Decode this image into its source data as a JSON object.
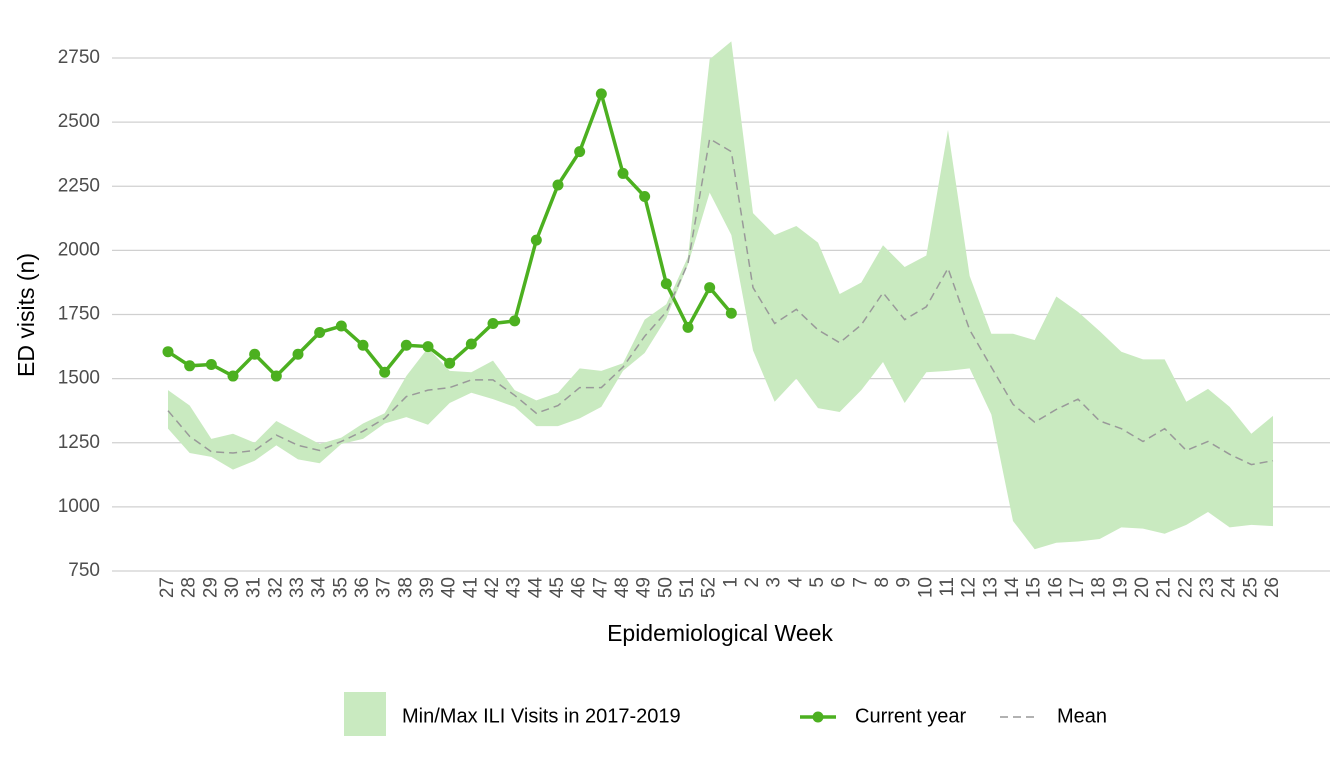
{
  "chart_data": {
    "type": "line",
    "x_label": "Epidemiological Week",
    "y_label": "ED visits (n)",
    "categories": [
      "27",
      "28",
      "29",
      "30",
      "31",
      "32",
      "33",
      "34",
      "35",
      "36",
      "37",
      "38",
      "39",
      "40",
      "41",
      "42",
      "43",
      "44",
      "45",
      "46",
      "47",
      "48",
      "49",
      "50",
      "51",
      "52",
      "1",
      "2",
      "3",
      "4",
      "5",
      "6",
      "7",
      "8",
      "9",
      "10",
      "11",
      "12",
      "13",
      "14",
      "15",
      "16",
      "17",
      "18",
      "19",
      "20",
      "21",
      "22",
      "23",
      "24",
      "25",
      "26"
    ],
    "ylim": [
      750,
      2850
    ],
    "yticks": [
      750,
      1000,
      1250,
      1500,
      1750,
      2000,
      2250,
      2500,
      2750
    ],
    "grid": true,
    "legend": "bottom",
    "series": [
      {
        "name": "Min/Max ILI Visits in 2017-2019",
        "kind": "band",
        "color": "#c9eac0",
        "lower": [
          1305,
          1210,
          1195,
          1145,
          1180,
          1240,
          1185,
          1170,
          1245,
          1265,
          1325,
          1350,
          1320,
          1405,
          1445,
          1420,
          1390,
          1315,
          1315,
          1345,
          1390,
          1530,
          1600,
          1735,
          1945,
          2225,
          2060,
          1610,
          1410,
          1500,
          1385,
          1370,
          1455,
          1565,
          1405,
          1525,
          1530,
          1540,
          1360,
          945,
          835,
          860,
          865,
          875,
          920,
          915,
          895,
          930,
          980,
          920,
          930,
          925
        ],
        "upper": [
          1455,
          1395,
          1265,
          1285,
          1250,
          1335,
          1290,
          1245,
          1270,
          1325,
          1365,
          1510,
          1620,
          1530,
          1525,
          1570,
          1455,
          1415,
          1445,
          1540,
          1530,
          1560,
          1730,
          1790,
          1975,
          2745,
          2815,
          2145,
          2060,
          2095,
          2030,
          1830,
          1875,
          2020,
          1935,
          1980,
          2470,
          1900,
          1675,
          1675,
          1650,
          1820,
          1760,
          1685,
          1605,
          1575,
          1575,
          1410,
          1460,
          1390,
          1285,
          1355
        ]
      },
      {
        "name": "Current year",
        "kind": "line",
        "color": "#4cb020",
        "values": [
          1605,
          1550,
          1555,
          1510,
          1595,
          1510,
          1595,
          1680,
          1705,
          1630,
          1525,
          1630,
          1625,
          1560,
          1635,
          1715,
          1725,
          2040,
          2255,
          2385,
          2610,
          2300,
          2210,
          1870,
          1700,
          1855,
          1755,
          null,
          null,
          null,
          null,
          null,
          null,
          null,
          null,
          null,
          null,
          null,
          null,
          null,
          null,
          null,
          null,
          null,
          null,
          null,
          null,
          null,
          null,
          null,
          null,
          null
        ]
      },
      {
        "name": "Mean",
        "kind": "dashed",
        "color": "#999999",
        "values": [
          1375,
          1275,
          1215,
          1210,
          1220,
          1280,
          1240,
          1220,
          1255,
          1295,
          1345,
          1430,
          1455,
          1465,
          1495,
          1495,
          1435,
          1365,
          1395,
          1465,
          1465,
          1545,
          1665,
          1760,
          1950,
          2435,
          2385,
          1855,
          1715,
          1770,
          1690,
          1640,
          1710,
          1835,
          1730,
          1780,
          1930,
          1690,
          1545,
          1400,
          1330,
          1380,
          1420,
          1335,
          1305,
          1255,
          1305,
          1220,
          1255,
          1205,
          1165,
          1180
        ]
      }
    ]
  }
}
